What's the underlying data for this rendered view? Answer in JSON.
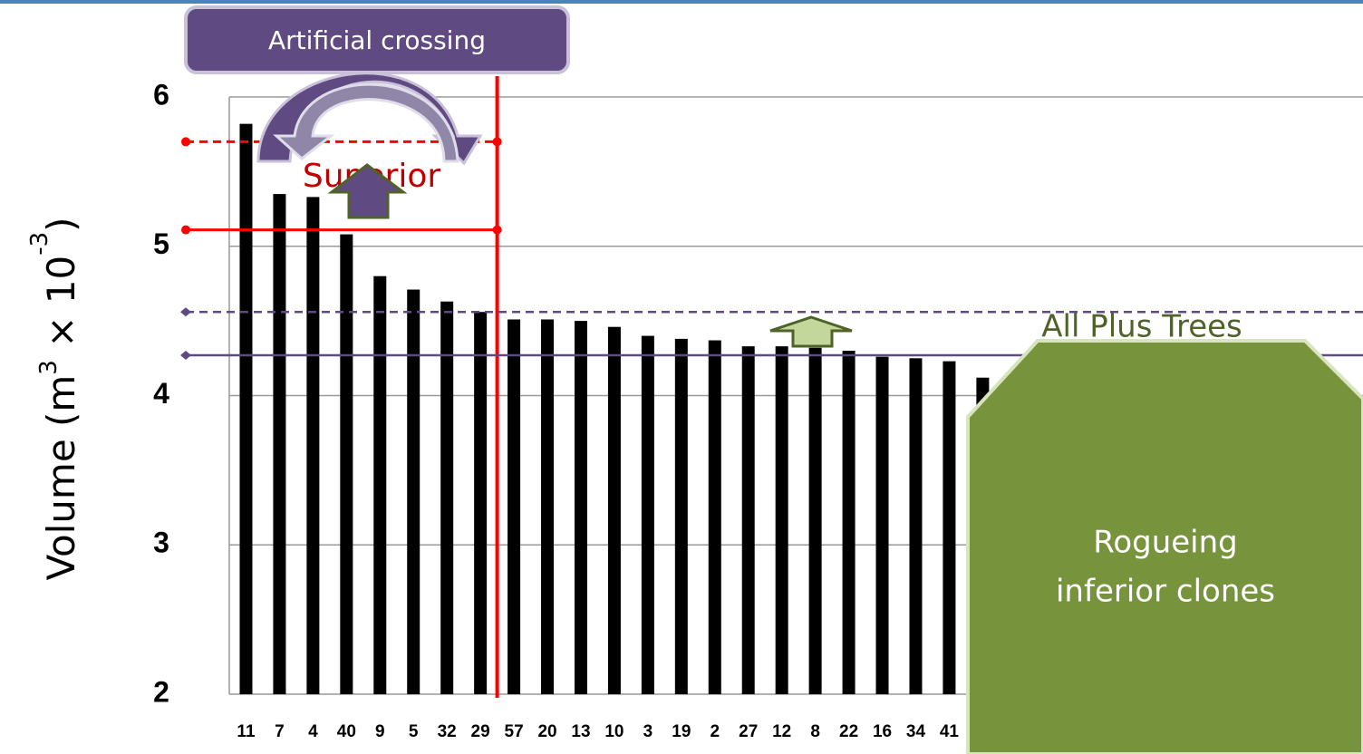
{
  "chart_data": {
    "type": "bar",
    "ylabel": {
      "main": "Volume (m",
      "sup1": "3",
      "mid": " × 10",
      "sup2": "-3",
      "end": ")"
    },
    "categories": [
      "11",
      "7",
      "4",
      "40",
      "9",
      "5",
      "32",
      "29",
      "57",
      "20",
      "13",
      "10",
      "3",
      "19",
      "2",
      "27",
      "12",
      "8",
      "22",
      "16",
      "34",
      "41",
      null
    ],
    "values": [
      5.82,
      5.35,
      5.33,
      5.08,
      4.8,
      4.71,
      4.63,
      4.56,
      4.51,
      4.51,
      4.5,
      4.46,
      4.4,
      4.38,
      4.37,
      4.33,
      4.33,
      4.32,
      4.3,
      4.26,
      4.25,
      4.23,
      4.12
    ],
    "color": "#000000",
    "ylim": [
      2,
      6
    ],
    "yticks": [
      2,
      3,
      4,
      5,
      6
    ],
    "grid": true,
    "selected_count": 8,
    "threshold_lines": [
      5.7,
      5.11
    ],
    "threshold_color": "#ff0000",
    "mean_lines": [
      4.56,
      4.27
    ],
    "mean_color": "#5f4b82",
    "annotations": {
      "crossing": "Artificial crossing",
      "superior": "Superior",
      "all_plus_trees": "All Plus Trees",
      "rogueing_1": "Rogueing",
      "rogueing_2": "inferior clones"
    }
  }
}
